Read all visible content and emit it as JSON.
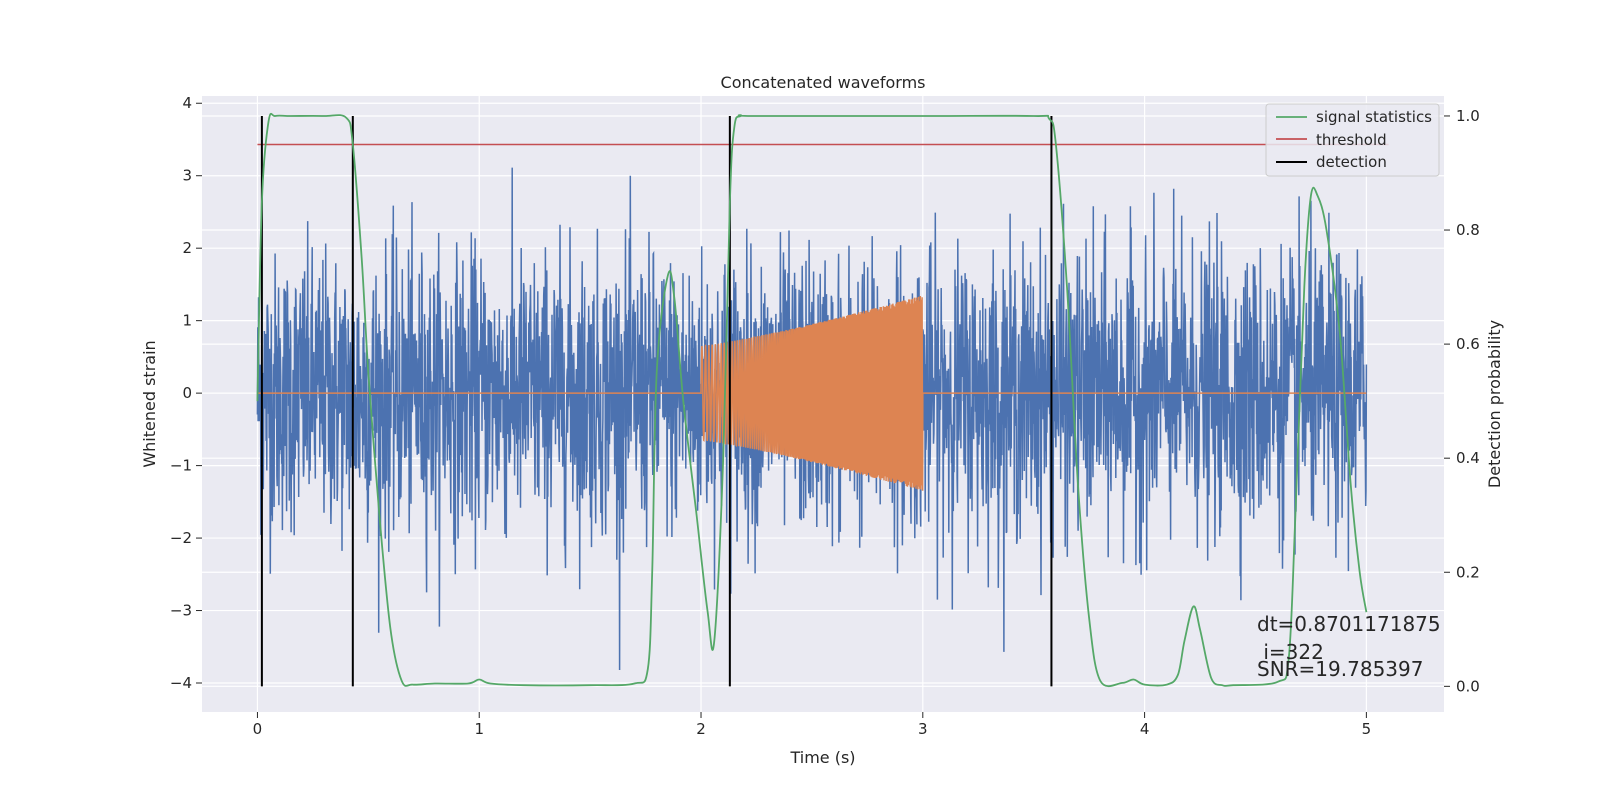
{
  "chart_data": {
    "type": "line",
    "title": "Concatenated waveforms",
    "xlabel": "Time (s)",
    "ylabel": "Whitened strain",
    "y2label": "Detection probability",
    "xlim": [
      -0.25,
      5.35
    ],
    "ylim": [
      -4.4,
      4.1
    ],
    "y2lim": [
      -0.045,
      1.035
    ],
    "xticks": [
      0,
      1,
      2,
      3,
      4,
      5
    ],
    "yticks": [
      -4,
      -3,
      -2,
      -1,
      0,
      1,
      2,
      3,
      4
    ],
    "y2ticks": [
      0.0,
      0.2,
      0.4,
      0.6,
      0.8,
      1.0
    ],
    "xtick_labels": [
      "0",
      "1",
      "2",
      "3",
      "4",
      "5"
    ],
    "ytick_labels": [
      "−4",
      "−3",
      "−2",
      "−1",
      "0",
      "1",
      "2",
      "3",
      "4"
    ],
    "y2tick_labels": [
      "0.0",
      "0.2",
      "0.4",
      "0.6",
      "0.8",
      "1.0"
    ],
    "grid": true,
    "legend_position": "top-right",
    "legend": [
      "signal statistics",
      "threshold",
      "detection"
    ],
    "series": [
      {
        "kind": "noisy strain",
        "color": "#4c72b0",
        "x_range": [
          0,
          5
        ],
        "noise_sigma": 0.95,
        "max": 3.75,
        "min": -4.0,
        "axis": "left"
      },
      {
        "kind": "injected chirp",
        "color": "#dd8452",
        "x_range": [
          2.0,
          3.0
        ],
        "amplitude_start": 0.65,
        "amplitude_end": 1.35,
        "axis": "left"
      },
      {
        "name": "signal statistics",
        "color": "#55a868",
        "axis": "right",
        "x": [
          0.0,
          0.02,
          0.05,
          0.08,
          0.15,
          0.3,
          0.4,
          0.43,
          0.47,
          0.5,
          0.55,
          0.6,
          0.65,
          0.7,
          0.8,
          0.95,
          1.0,
          1.05,
          1.2,
          1.5,
          1.7,
          1.76,
          1.78,
          1.8,
          1.85,
          1.88,
          1.92,
          1.98,
          2.03,
          2.06,
          2.1,
          2.13,
          2.15,
          2.18,
          2.25,
          3.0,
          3.5,
          3.57,
          3.6,
          3.65,
          3.7,
          3.75,
          3.8,
          3.9,
          3.95,
          4.0,
          4.1,
          4.15,
          4.18,
          4.22,
          4.25,
          4.3,
          4.35,
          4.4,
          4.6,
          4.65,
          4.68,
          4.72,
          4.75,
          4.78,
          4.82,
          4.88,
          4.93,
          4.97,
          5.0
        ],
        "y": [
          0.5,
          0.85,
          0.99,
          1.0,
          1.0,
          1.0,
          0.997,
          0.95,
          0.75,
          0.55,
          0.3,
          0.1,
          0.01,
          0.003,
          0.005,
          0.005,
          0.012,
          0.005,
          0.002,
          0.002,
          0.005,
          0.03,
          0.2,
          0.55,
          0.72,
          0.68,
          0.5,
          0.3,
          0.13,
          0.08,
          0.4,
          0.85,
          0.98,
          1.0,
          1.0,
          1.0,
          1.0,
          0.995,
          0.95,
          0.7,
          0.35,
          0.12,
          0.01,
          0.006,
          0.012,
          0.003,
          0.003,
          0.02,
          0.08,
          0.14,
          0.1,
          0.015,
          0.002,
          0.002,
          0.008,
          0.05,
          0.3,
          0.7,
          0.86,
          0.86,
          0.8,
          0.62,
          0.35,
          0.2,
          0.13
        ]
      },
      {
        "name": "threshold",
        "color": "#c44e52",
        "axis": "right",
        "x": [
          0,
          5.1
        ],
        "y": [
          0.95,
          0.95
        ]
      }
    ],
    "detections": {
      "name": "detection",
      "color": "#000000",
      "x": [
        0.02,
        0.43,
        2.13,
        3.58
      ],
      "y2_range": [
        0.0,
        1.0
      ]
    },
    "annotations": [
      {
        "text": "dt=0.8701171875"
      },
      {
        "text": " i=322"
      },
      {
        "text": "SNR=19.785397"
      }
    ]
  }
}
